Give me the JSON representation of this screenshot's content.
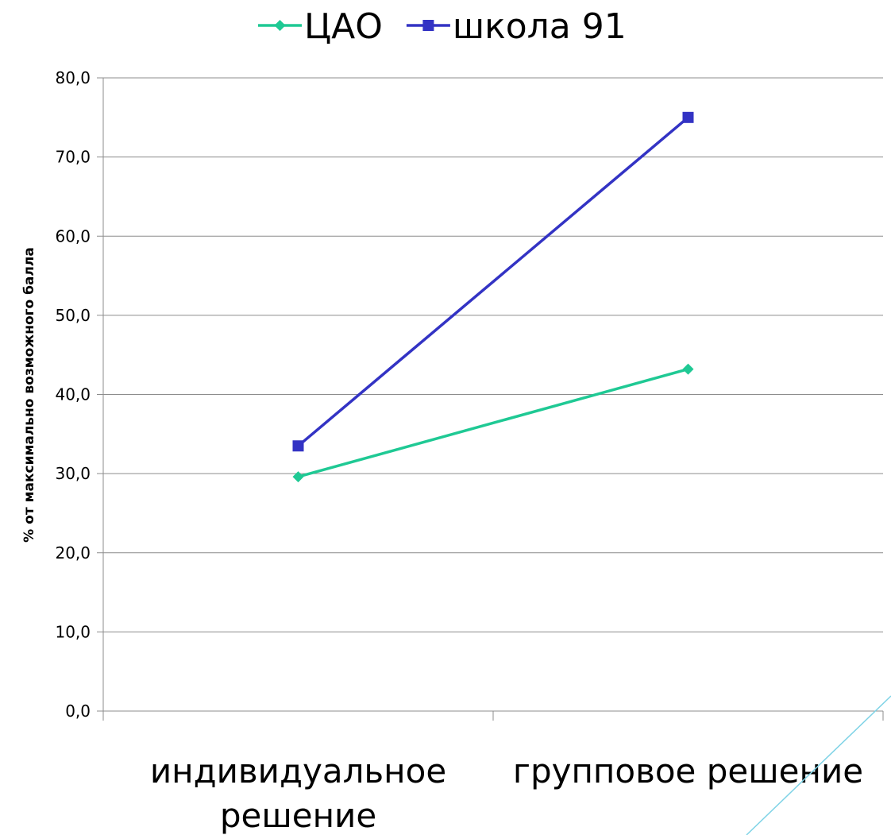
{
  "chart_data": {
    "type": "line",
    "categories": [
      "индивидуальное решение",
      "групповое решение"
    ],
    "category_lines": [
      [
        "индивидуальное",
        "решение"
      ],
      [
        "групповое решение"
      ]
    ],
    "series": [
      {
        "name": "ЦАО",
        "values": [
          29.6,
          43.2
        ],
        "color": "#1fc994",
        "marker": "diamond"
      },
      {
        "name": "школа 91",
        "values": [
          33.5,
          75.0
        ],
        "color": "#3333c4",
        "marker": "square"
      }
    ],
    "xlabel": "",
    "ylabel": "% от максимально возможного балла",
    "ylim": [
      0,
      80
    ],
    "yticks": [
      "0,0",
      "10,0",
      "20,0",
      "30,0",
      "40,0",
      "50,0",
      "60,0",
      "70,0",
      "80,0"
    ],
    "grid": true,
    "legend_position": "top"
  },
  "colors": {
    "gridline": "#8c8c8c",
    "decor_line": "#7fd3e6"
  }
}
